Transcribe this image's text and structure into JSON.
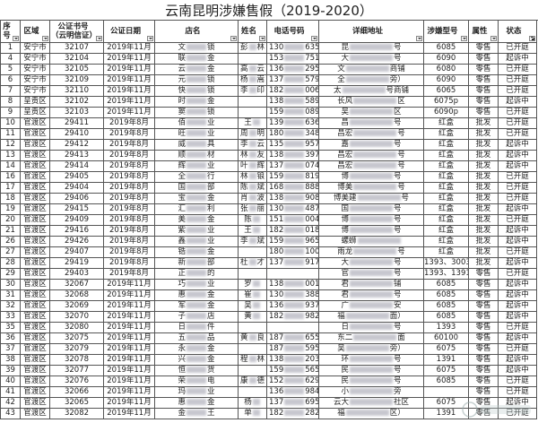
{
  "title": "云南昆明涉嫌售假（2019-2020）",
  "columns": [
    "序号",
    "区域",
    "公证书号（云明信证）",
    "公证日期",
    "店名",
    "姓名",
    "电话号码",
    "详细地址",
    "涉嫌型号",
    "属性",
    "状态"
  ],
  "filter_icon": "dropdown-arrow-icon",
  "rows": [
    {
      "no": "1",
      "area": "安宁市",
      "cert": "32107",
      "date": "2019年11月",
      "shop": [
        "文",
        "锁"
      ],
      "name": [
        "彭",
        "林"
      ],
      "phone": [
        "130",
        "635"
      ],
      "addr": [
        "昆",
        "号"
      ],
      "model": "6085",
      "attr": "零售",
      "status": "已开庭"
    },
    {
      "no": "4",
      "area": "安宁市",
      "cert": "32104",
      "date": "2019年11月",
      "shop": [
        "联",
        "金"
      ],
      "name": [
        "",
        ""
      ],
      "phone": [
        "153",
        "751"
      ],
      "addr": [
        "大",
        "号"
      ],
      "model": "6090",
      "attr": "零售",
      "status": "起诉中"
    },
    {
      "no": "5",
      "area": "安宁市",
      "cert": "32105",
      "date": "2019年11月",
      "shop": [
        "云",
        "金"
      ],
      "name": [
        "高",
        "云"
      ],
      "phone": [
        "136",
        "295"
      ],
      "addr": [
        "文",
        "商铺"
      ],
      "model": "6080",
      "attr": "零售",
      "status": "已开庭"
    },
    {
      "no": "6",
      "area": "安宁市",
      "cert": "32109",
      "date": "2019年11月",
      "shop": [
        "元",
        "锁"
      ],
      "name": [
        "杨",
        "嵩"
      ],
      "phone": [
        "137",
        "579"
      ],
      "addr": [
        "全",
        "旁）"
      ],
      "model": "6090",
      "attr": "零售",
      "status": "已开庭"
    },
    {
      "no": "7",
      "area": "安宁市",
      "cert": "32110",
      "date": "2019年11月",
      "shop": [
        "快",
        "锁"
      ],
      "name": [
        "李",
        "印"
      ],
      "phone": [
        "182",
        "006"
      ],
      "addr": [
        "太",
        "号商铺"
      ],
      "model": "6065",
      "attr": "零售",
      "status": "已开庭"
    },
    {
      "no": "8",
      "area": "呈贡区",
      "cert": "32102",
      "date": "2019年11月",
      "shop": [
        "时",
        "金"
      ],
      "name": [
        "",
        ""
      ],
      "phone": [
        "138",
        "589"
      ],
      "addr": [
        "长风",
        "区"
      ],
      "model": "6075p",
      "attr": "零售",
      "status": "起诉中"
    },
    {
      "no": "9",
      "area": "呈贡区",
      "cert": "32103",
      "date": "2019年11月",
      "shop": [
        "窦",
        "锁"
      ],
      "name": [
        "",
        ""
      ],
      "phone": [
        "159",
        "089"
      ],
      "addr": [
        "吴",
        "区"
      ],
      "model": "6090p",
      "attr": "零售",
      "status": "已开庭"
    },
    {
      "no": "10",
      "area": "官渡区",
      "cert": "29411",
      "date": "2019年8月",
      "shop": [
        "佰",
        "业"
      ],
      "name": [
        "王",
        ""
      ],
      "phone": [
        "139",
        "636"
      ],
      "addr": [
        "昌",
        "号"
      ],
      "model": "红盒",
      "attr": "批发",
      "status": "已开庭"
    },
    {
      "no": "11",
      "area": "官渡区",
      "cert": "29410",
      "date": "2019年8月",
      "shop": [
        "旺",
        "业"
      ],
      "name": [
        "周",
        "明"
      ],
      "phone": [
        "180",
        "348"
      ],
      "addr": [
        "昌宏",
        "号"
      ],
      "model": "红盒",
      "attr": "批发",
      "status": "已开庭"
    },
    {
      "no": "12",
      "area": "官渡区",
      "cert": "29412",
      "date": "2019年8月",
      "shop": [
        "威",
        "具"
      ],
      "name": [
        "李",
        "云"
      ],
      "phone": [
        "135",
        "957"
      ],
      "addr": [
        "嘉",
        "号"
      ],
      "model": "红盒",
      "attr": "批发",
      "status": "起诉中"
    },
    {
      "no": "13",
      "area": "官渡区",
      "cert": "29413",
      "date": "2019年8月",
      "shop": [
        "顺",
        "材"
      ],
      "name": [
        "林",
        "友"
      ],
      "phone": [
        "138",
        "397"
      ],
      "addr": [
        "昌宏",
        "号"
      ],
      "model": "红盒",
      "attr": "批发",
      "status": "起诉中"
    },
    {
      "no": "14",
      "area": "官渡区",
      "cert": "29414",
      "date": "2019年8月",
      "shop": [
        "辉",
        "业"
      ],
      "name": [
        "叶",
        "辉"
      ],
      "phone": [
        "137",
        "074"
      ],
      "addr": [
        "昌宏",
        "号"
      ],
      "model": "红盒",
      "attr": "批发",
      "status": "起诉中"
    },
    {
      "no": "16",
      "area": "官渡区",
      "cert": "29405",
      "date": "2019年8月",
      "shop": [
        "全",
        "行"
      ],
      "name": [
        "林",
        "锒"
      ],
      "phone": [
        "159",
        "819"
      ],
      "addr": [
        "博",
        "号"
      ],
      "model": "红盒",
      "attr": "批发",
      "status": "已开庭"
    },
    {
      "no": "17",
      "area": "官渡区",
      "cert": "29404",
      "date": "2019年8月",
      "shop": [
        "国",
        "部"
      ],
      "name": [
        "陈",
        "斌"
      ],
      "phone": [
        "168",
        "888"
      ],
      "addr": [
        "博美",
        "号"
      ],
      "model": "红盒",
      "attr": "批发",
      "status": "已开庭"
    },
    {
      "no": "18",
      "area": "官渡区",
      "cert": "29406",
      "date": "2019年8月",
      "shop": [
        "宝",
        "金"
      ],
      "name": [
        "肖",
        "波"
      ],
      "phone": [
        "138",
        "908"
      ],
      "addr": [
        "博美建",
        "号"
      ],
      "model": "红盒",
      "attr": "批发",
      "status": "已开庭"
    },
    {
      "no": "19",
      "area": "官渡区",
      "cert": "29415",
      "date": "2019年8月",
      "shop": [
        "汇",
        "利"
      ],
      "name": [
        "张",
        "丽"
      ],
      "phone": [
        "130",
        "487"
      ],
      "addr": [
        "国",
        "号"
      ],
      "model": "红盒",
      "attr": "批发",
      "status": "起诉中"
    },
    {
      "no": "20",
      "area": "官渡区",
      "cert": "29409",
      "date": "2019年8月",
      "shop": [
        "美",
        "金"
      ],
      "name": [
        "陈",
        ""
      ],
      "phone": [
        "151",
        "004"
      ],
      "addr": [
        "博",
        "号"
      ],
      "model": "红盒",
      "attr": "批发",
      "status": "已开庭"
    },
    {
      "no": "21",
      "area": "官渡区",
      "cert": "29416",
      "date": "2019年8月",
      "shop": [
        "紫",
        "业"
      ],
      "name": [
        "王",
        ""
      ],
      "phone": [
        "182",
        "018"
      ],
      "addr": [
        "博",
        "号"
      ],
      "model": "红盒",
      "attr": "批发",
      "status": "起诉中"
    },
    {
      "no": "26",
      "area": "官渡区",
      "cert": "29426",
      "date": "2019年8月",
      "shop": [
        "鑫",
        "业"
      ],
      "name": [
        "李",
        "斌"
      ],
      "phone": [
        "159",
        "965"
      ],
      "addr": [
        "螺蛳",
        ""
      ],
      "model": "红盒",
      "attr": "批发",
      "status": "起诉中"
    },
    {
      "no": "27",
      "area": "官渡区",
      "cert": "29407",
      "date": "2019年8月",
      "shop": [
        "锆",
        "金"
      ],
      "name": [
        "",
        ""
      ],
      "phone": [
        "180",
        "100"
      ],
      "addr": [
        "雨龙",
        "号"
      ],
      "model": "红盒",
      "attr": "批发",
      "status": "已开庭"
    },
    {
      "no": "28",
      "area": "官渡区",
      "cert": "29419",
      "date": "2019年8月",
      "shop": [
        "新",
        "部"
      ],
      "name": [
        "杜",
        "才"
      ],
      "phone": [
        "137",
        "917"
      ],
      "addr": [
        "大",
        "号"
      ],
      "model": "1393、3003",
      "attr": "批发",
      "status": "起诉中"
    },
    {
      "no": "29",
      "area": "官渡区",
      "cert": "29403",
      "date": "2019年8月",
      "shop": [
        "正",
        "的"
      ],
      "name": [
        "",
        ""
      ],
      "phone": [
        "",
        ""
      ],
      "addr": [
        "官",
        "号"
      ],
      "model": "1393、1391",
      "attr": "零售",
      "status": "已开庭"
    },
    {
      "no": "30",
      "area": "官渡区",
      "cert": "32067",
      "date": "2019年11月",
      "shop": [
        "巧",
        "业"
      ],
      "name": [
        "罗",
        ""
      ],
      "phone": [
        "138",
        "001"
      ],
      "addr": [
        "君",
        "铺"
      ],
      "model": "6085",
      "attr": "零售",
      "status": "起诉中"
    },
    {
      "no": "31",
      "area": "官渡区",
      "cert": "32068",
      "date": "2019年11月",
      "shop": [
        "惠",
        "金"
      ],
      "name": [
        "崔",
        ""
      ],
      "phone": [
        "130",
        "388"
      ],
      "addr": [
        "君",
        "号"
      ],
      "model": "6085",
      "attr": "零售",
      "status": "起诉中"
    },
    {
      "no": "32",
      "area": "官渡区",
      "cert": "32069",
      "date": "2019年11月",
      "shop": [
        "军",
        "金"
      ],
      "name": [
        "吴",
        ""
      ],
      "phone": [
        "136",
        "937"
      ],
      "addr": [
        "广",
        "安"
      ],
      "model": "6085",
      "attr": "零售",
      "status": "起诉中"
    },
    {
      "no": "33",
      "area": "官渡区",
      "cert": "32070",
      "date": "2019年11月",
      "shop": [
        "子",
        "店"
      ],
      "name": [
        "黄",
        ""
      ],
      "phone": [
        "182",
        "982"
      ],
      "addr": [
        "福",
        "面）"
      ],
      "model": "6085",
      "attr": "零售",
      "status": "起诉中"
    },
    {
      "no": "35",
      "area": "官渡区",
      "cert": "32080",
      "date": "2019年11月",
      "shop": [
        "日",
        "件"
      ],
      "name": [
        "",
        ""
      ],
      "phone": [
        "",
        ""
      ],
      "addr": [
        "日",
        "号"
      ],
      "model": "1393",
      "attr": "零售",
      "status": "已开庭"
    },
    {
      "no": "36",
      "area": "官渡区",
      "cert": "32075",
      "date": "2019年11月",
      "shop": [
        "五",
        "品"
      ],
      "name": [
        "黄",
        "良"
      ],
      "phone": [
        "187",
        "655"
      ],
      "addr": [
        "东二",
        "面"
      ],
      "model": "60100",
      "attr": "零售",
      "status": "起诉中"
    },
    {
      "no": "37",
      "area": "官渡区",
      "cert": "32079",
      "date": "2019年11月",
      "shop": [
        "永",
        "金"
      ],
      "name": [
        "",
        ""
      ],
      "phone": [
        "187",
        "595"
      ],
      "addr": [
        "吴",
        "旁）"
      ],
      "model": "6075",
      "attr": "零售",
      "status": "已开庭"
    },
    {
      "no": "38",
      "area": "官渡区",
      "cert": "32078",
      "date": "2019年11月",
      "shop": [
        "兴",
        "金"
      ],
      "name": [
        "程",
        "林"
      ],
      "phone": [
        "138",
        "203"
      ],
      "addr": [
        "环",
        "号"
      ],
      "model": "1391",
      "attr": "零售",
      "status": "起诉中"
    },
    {
      "no": "39",
      "area": "官渡区",
      "cert": "32077",
      "date": "2019年11月",
      "shop": [
        "恒",
        "货"
      ],
      "name": [
        "",
        ""
      ],
      "phone": [
        "159",
        "565"
      ],
      "addr": [
        "民",
        "号"
      ],
      "model": "6075",
      "attr": "零售",
      "status": "起诉中"
    },
    {
      "no": "40",
      "area": "官渡区",
      "cert": "32076",
      "date": "2019年11月",
      "shop": [
        "荣",
        "电"
      ],
      "name": [
        "康",
        "德"
      ],
      "phone": [
        "152",
        "629"
      ],
      "addr": [
        "民",
        "号"
      ],
      "model": "6085",
      "attr": "零售",
      "status": "已开庭"
    },
    {
      "no": "41",
      "area": "官渡区",
      "cert": "32066",
      "date": "2019年11月",
      "shop": [
        "玛",
        "业"
      ],
      "name": [
        "",
        ""
      ],
      "phone": [
        "136",
        "984"
      ],
      "addr": [
        "小",
        "旁"
      ],
      "model": "",
      "attr": "零售",
      "status": "已开庭"
    },
    {
      "no": "42",
      "area": "官渡区",
      "cert": "32065",
      "date": "2019年11月",
      "shop": [
        "惠",
        "金"
      ],
      "name": [
        "杨",
        ""
      ],
      "phone": [
        "137",
        "695"
      ],
      "addr": [
        "云大",
        "社区"
      ],
      "model": "6075",
      "attr": "零售",
      "status": "起诉中"
    },
    {
      "no": "43",
      "area": "官渡区",
      "cert": "32082",
      "date": "2019年11月",
      "shop": [
        "金",
        "王"
      ],
      "name": [
        "单",
        ""
      ],
      "phone": [
        "182",
        "282"
      ],
      "addr": [
        "福",
        "区）"
      ],
      "model": "1391",
      "attr": "零售",
      "status": "已开庭"
    }
  ]
}
